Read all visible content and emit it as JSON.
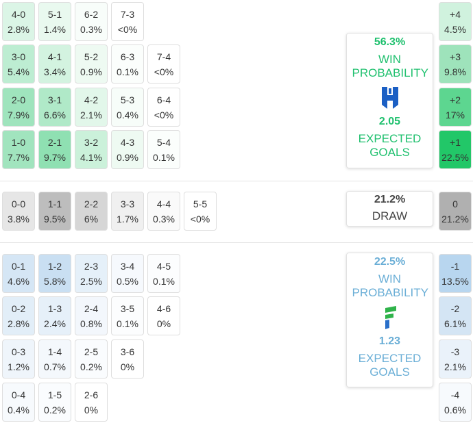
{
  "home": {
    "rows": [
      [
        {
          "score": "4-0",
          "prob": "2.8%",
          "color": "#dbf5e6"
        },
        {
          "score": "5-1",
          "prob": "1.4%",
          "color": "#e9f9ef"
        },
        {
          "score": "6-2",
          "prob": "0.3%",
          "color": "#f8fdfa"
        },
        {
          "score": "7-3",
          "prob": "<0%",
          "color": "#ffffff"
        }
      ],
      [
        {
          "score": "3-0",
          "prob": "5.4%",
          "color": "#bdedd2"
        },
        {
          "score": "4-1",
          "prob": "3.4%",
          "color": "#d3f3e0"
        },
        {
          "score": "5-2",
          "prob": "0.9%",
          "color": "#eefaf2"
        },
        {
          "score": "6-3",
          "prob": "0.1%",
          "color": "#fbfefc"
        },
        {
          "score": "7-4",
          "prob": "<0%",
          "color": "#ffffff"
        }
      ],
      [
        {
          "score": "2-0",
          "prob": "7.9%",
          "color": "#9fe4bd"
        },
        {
          "score": "3-1",
          "prob": "6.6%",
          "color": "#b0e9c8"
        },
        {
          "score": "4-2",
          "prob": "2.1%",
          "color": "#e2f7ea"
        },
        {
          "score": "5-3",
          "prob": "0.4%",
          "color": "#f7fdf9"
        },
        {
          "score": "6-4",
          "prob": "<0%",
          "color": "#ffffff"
        }
      ],
      [
        {
          "score": "1-0",
          "prob": "7.7%",
          "color": "#a1e4be"
        },
        {
          "score": "2-1",
          "prob": "9.7%",
          "color": "#8fe0b2"
        },
        {
          "score": "3-2",
          "prob": "4.1%",
          "color": "#cbf1da"
        },
        {
          "score": "4-3",
          "prob": "0.9%",
          "color": "#eefaf2"
        },
        {
          "score": "5-4",
          "prob": "0.1%",
          "color": "#fbfefc"
        }
      ]
    ],
    "margins": [
      {
        "score": "+4",
        "prob": "4.5%",
        "color": "#d0f2de"
      },
      {
        "score": "+3",
        "prob": "9.8%",
        "color": "#9ee3bb"
      },
      {
        "score": "+2",
        "prob": "17%",
        "color": "#5dd690"
      },
      {
        "score": "+1",
        "prob": "22.5%",
        "color": "#22c768"
      }
    ],
    "summary": {
      "win_probability": "56.3%",
      "win_label": "WIN PROBABILITY",
      "expected_goals": "2.05",
      "xg_label": "EXPECTED GOALS",
      "color": "#1fc06e"
    }
  },
  "draw": {
    "rows": [
      [
        {
          "score": "0-0",
          "prob": "3.8%",
          "color": "#e6e6e6"
        },
        {
          "score": "1-1",
          "prob": "9.5%",
          "color": "#bdbdbd"
        },
        {
          "score": "2-2",
          "prob": "6%",
          "color": "#d6d6d6"
        },
        {
          "score": "3-3",
          "prob": "1.7%",
          "color": "#f0f0f0"
        },
        {
          "score": "4-4",
          "prob": "0.3%",
          "color": "#fafafa"
        },
        {
          "score": "5-5",
          "prob": "<0%",
          "color": "#ffffff"
        }
      ]
    ],
    "margins": [
      {
        "score": "0",
        "prob": "21.2%",
        "color": "#b0b0b0"
      }
    ],
    "summary": {
      "probability": "21.2%",
      "label": "DRAW",
      "color": "#444444"
    }
  },
  "away": {
    "rows": [
      [
        {
          "score": "0-1",
          "prob": "4.6%",
          "color": "#d5e6f5"
        },
        {
          "score": "1-2",
          "prob": "5.8%",
          "color": "#c9dff2"
        },
        {
          "score": "2-3",
          "prob": "2.5%",
          "color": "#e5f0f9"
        },
        {
          "score": "3-4",
          "prob": "0.5%",
          "color": "#f6f9fd"
        },
        {
          "score": "4-5",
          "prob": "0.1%",
          "color": "#fcfdfe"
        }
      ],
      [
        {
          "score": "0-2",
          "prob": "2.8%",
          "color": "#e2eef8"
        },
        {
          "score": "1-3",
          "prob": "2.4%",
          "color": "#e6f0f9"
        },
        {
          "score": "2-4",
          "prob": "0.8%",
          "color": "#f3f7fc"
        },
        {
          "score": "3-5",
          "prob": "0.1%",
          "color": "#fcfdfe"
        },
        {
          "score": "4-6",
          "prob": "0%",
          "color": "#ffffff"
        }
      ],
      [
        {
          "score": "0-3",
          "prob": "1.2%",
          "color": "#eff5fb"
        },
        {
          "score": "1-4",
          "prob": "0.7%",
          "color": "#f4f8fc"
        },
        {
          "score": "2-5",
          "prob": "0.2%",
          "color": "#fafcfe"
        },
        {
          "score": "3-6",
          "prob": "0%",
          "color": "#ffffff"
        }
      ],
      [
        {
          "score": "0-4",
          "prob": "0.4%",
          "color": "#f7fafd"
        },
        {
          "score": "1-5",
          "prob": "0.2%",
          "color": "#fafcfe"
        },
        {
          "score": "2-6",
          "prob": "0%",
          "color": "#ffffff"
        }
      ]
    ],
    "margins": [
      {
        "score": "-1",
        "prob": "13.5%",
        "color": "#b8d6ef"
      },
      {
        "score": "-2",
        "prob": "6.1%",
        "color": "#d4e5f4"
      },
      {
        "score": "-3",
        "prob": "2.1%",
        "color": "#eaf2fa"
      },
      {
        "score": "-4",
        "prob": "0.6%",
        "color": "#f7fafd"
      }
    ],
    "summary": {
      "win_probability": "22.5%",
      "win_label": "WIN PROBABILITY",
      "expected_goals": "1.23",
      "xg_label": "EXPECTED GOALS",
      "color": "#6aaed6"
    }
  }
}
